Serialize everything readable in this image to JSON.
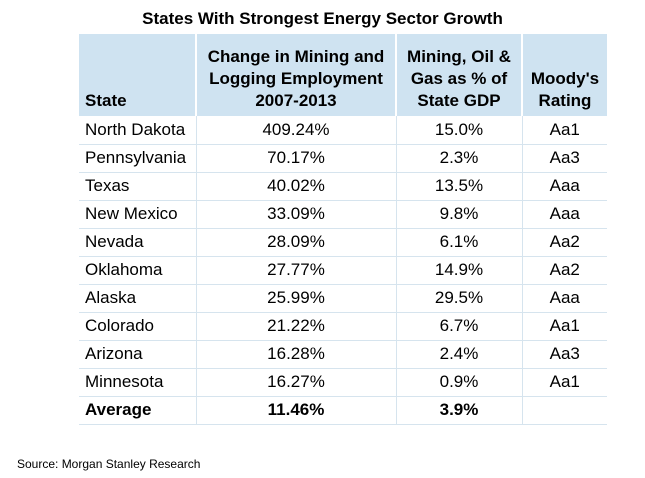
{
  "chart_data": {
    "type": "table",
    "title": "States With Strongest Energy Sector Growth",
    "columns": [
      "State",
      "Change in Mining and Logging Employment 2007-2013",
      "Mining, Oil & Gas as % of State GDP",
      "Moody's Rating"
    ],
    "rows": [
      {
        "state": "North Dakota",
        "employment_change": "409.24%",
        "gdp_share": "15.0%",
        "rating": "Aa1"
      },
      {
        "state": "Pennsylvania",
        "employment_change": "70.17%",
        "gdp_share": "2.3%",
        "rating": "Aa3"
      },
      {
        "state": "Texas",
        "employment_change": "40.02%",
        "gdp_share": "13.5%",
        "rating": "Aaa"
      },
      {
        "state": "New Mexico",
        "employment_change": "33.09%",
        "gdp_share": "9.8%",
        "rating": "Aaa"
      },
      {
        "state": "Nevada",
        "employment_change": "28.09%",
        "gdp_share": "6.1%",
        "rating": "Aa2"
      },
      {
        "state": "Oklahoma",
        "employment_change": "27.77%",
        "gdp_share": "14.9%",
        "rating": "Aa2"
      },
      {
        "state": "Alaska",
        "employment_change": "25.99%",
        "gdp_share": "29.5%",
        "rating": "Aaa"
      },
      {
        "state": "Colorado",
        "employment_change": "21.22%",
        "gdp_share": "6.7%",
        "rating": "Aa1"
      },
      {
        "state": "Arizona",
        "employment_change": "16.28%",
        "gdp_share": "2.4%",
        "rating": "Aa3"
      },
      {
        "state": "Minnesota",
        "employment_change": "16.27%",
        "gdp_share": "0.9%",
        "rating": "Aa1"
      }
    ],
    "average": {
      "label": "Average",
      "employment_change": "11.46%",
      "gdp_share": "3.9%",
      "rating": ""
    },
    "source": "Source: Morgan Stanley Research"
  },
  "colors": {
    "header_bg": "#cfe3f1",
    "row_line": "#d6e4ee"
  }
}
